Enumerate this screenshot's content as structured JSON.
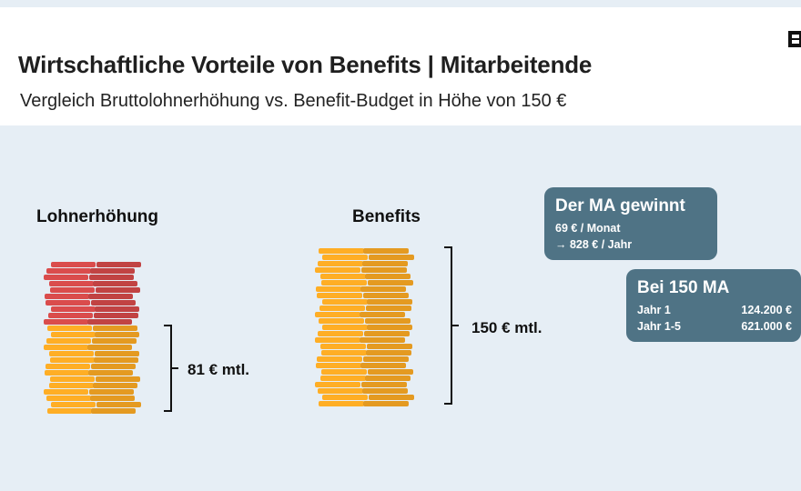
{
  "header": {
    "title": "Wirtschaftliche Vorteile von Benefits | Mitarbeitende",
    "subtitle": "Vergleich Bruttolohnerhöhung vs. Benefit-Budget in Höhe von 150 €",
    "logo_icon": "brand-logo-icon"
  },
  "left_stack": {
    "label": "Lohnerhöhung",
    "amount": "81 € mtl."
  },
  "right_stack": {
    "label": "Benefits",
    "amount": "150 € mtl."
  },
  "card_gain": {
    "title": "Der MA gewinnt",
    "line1": "69 € / Monat",
    "line2": "→ 828 € / Jahr"
  },
  "card_150": {
    "title": "Bei 150 MA",
    "rows": [
      {
        "label": "Jahr 1",
        "value": "124.200 €"
      },
      {
        "label": "Jahr 1-5",
        "value": "621.000 €"
      }
    ]
  },
  "colors": {
    "coin_red": "#d04848",
    "coin_orange": "#f5a623",
    "card_bg": "#4f7385",
    "background": "#e6eef5"
  }
}
